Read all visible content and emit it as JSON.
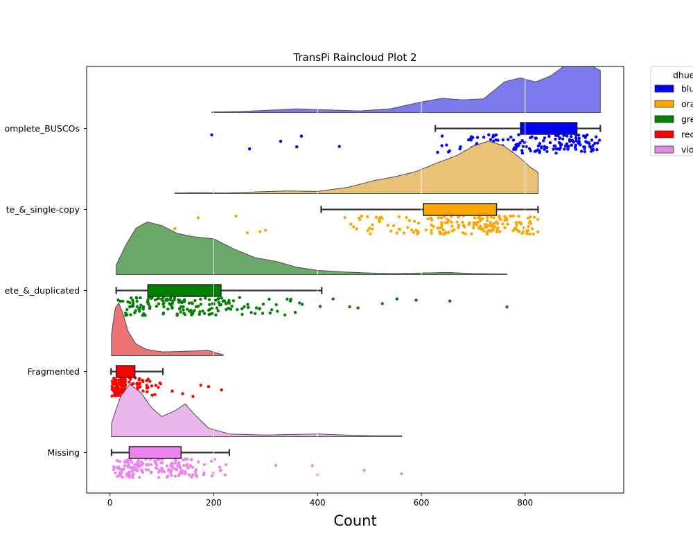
{
  "chart_data": {
    "type": "raincloud",
    "title": "TransPi Raincloud Plot 2",
    "xlabel": "Count",
    "ylabel": "",
    "xlim": [
      -45,
      990
    ],
    "xticks": [
      0,
      200,
      400,
      600,
      800
    ],
    "categories": [
      "Complete_BUSCOs",
      "Complete_&_single-copy",
      "Complete_&_duplicated",
      "Fragmented",
      "Missing"
    ],
    "category_labels_visible": [
      "omplete_BUSCOs",
      "te_&_single-copy",
      "ete_&_duplicated",
      "Fragmented",
      "Missing"
    ],
    "legend": {
      "title": "dhue",
      "entries": [
        "blue",
        "orange",
        "green",
        "red",
        "violet"
      ],
      "entries_visible": [
        "blu",
        "ora",
        "gre",
        "rec",
        "vio"
      ]
    },
    "series": [
      {
        "name": "blue",
        "color": "#0000ff",
        "cloud_color": "#7b7bee",
        "box": {
          "whisker_low": 627,
          "q1": 791,
          "median": 870,
          "q3": 900,
          "whisker_high": 945
        },
        "outliers": [
          196,
          269,
          329,
          360,
          369,
          442
        ],
        "density": [
          [
            197,
            0.01
          ],
          [
            250,
            0.02
          ],
          [
            300,
            0.04
          ],
          [
            360,
            0.07
          ],
          [
            420,
            0.05
          ],
          [
            480,
            0.03
          ],
          [
            540,
            0.07
          ],
          [
            600,
            0.2
          ],
          [
            640,
            0.27
          ],
          [
            680,
            0.24
          ],
          [
            720,
            0.26
          ],
          [
            760,
            0.58
          ],
          [
            790,
            0.66
          ],
          [
            820,
            0.58
          ],
          [
            850,
            0.7
          ],
          [
            880,
            0.92
          ],
          [
            905,
            1.0
          ],
          [
            925,
            0.9
          ],
          [
            945,
            0.8
          ]
        ]
      },
      {
        "name": "orange",
        "color": "#ffa500",
        "cloud_color": "#e9c277",
        "box": {
          "whisker_low": 407,
          "q1": 604,
          "median": 670,
          "q3": 745,
          "whisker_high": 825
        },
        "outliers": [
          125,
          170,
          243,
          265,
          289,
          300
        ],
        "density": [
          [
            125,
            0.01
          ],
          [
            170,
            0.02
          ],
          [
            220,
            0.01
          ],
          [
            280,
            0.03
          ],
          [
            340,
            0.05
          ],
          [
            400,
            0.04
          ],
          [
            460,
            0.12
          ],
          [
            510,
            0.25
          ],
          [
            550,
            0.32
          ],
          [
            590,
            0.42
          ],
          [
            630,
            0.58
          ],
          [
            670,
            0.73
          ],
          [
            700,
            0.9
          ],
          [
            730,
            1.0
          ],
          [
            760,
            0.9
          ],
          [
            790,
            0.68
          ],
          [
            810,
            0.5
          ],
          [
            825,
            0.4
          ]
        ]
      },
      {
        "name": "green",
        "color": "#008000",
        "cloud_color": "#6aa86a",
        "box": {
          "whisker_low": 12,
          "q1": 73,
          "median": 140,
          "q3": 214,
          "whisker_high": 408
        },
        "outliers": [
          430,
          462,
          478,
          525,
          553,
          590,
          655,
          765
        ],
        "density": [
          [
            12,
            0.18
          ],
          [
            30,
            0.55
          ],
          [
            50,
            0.88
          ],
          [
            72,
            1.0
          ],
          [
            100,
            0.93
          ],
          [
            130,
            0.78
          ],
          [
            160,
            0.72
          ],
          [
            200,
            0.68
          ],
          [
            240,
            0.48
          ],
          [
            280,
            0.32
          ],
          [
            320,
            0.25
          ],
          [
            360,
            0.14
          ],
          [
            400,
            0.08
          ],
          [
            450,
            0.05
          ],
          [
            500,
            0.03
          ],
          [
            550,
            0.02
          ],
          [
            600,
            0.03
          ],
          [
            650,
            0.04
          ],
          [
            700,
            0.02
          ],
          [
            765,
            0.01
          ]
        ]
      },
      {
        "name": "red",
        "color": "#ff0000",
        "cloud_color": "#ec7373",
        "box": {
          "whisker_low": 2,
          "q1": 12,
          "median": 24,
          "q3": 48,
          "whisker_high": 102
        },
        "outliers": [
          120,
          140,
          160,
          175,
          190,
          215
        ],
        "density": [
          [
            3,
            0.4
          ],
          [
            10,
            0.9
          ],
          [
            17,
            1.0
          ],
          [
            25,
            0.8
          ],
          [
            35,
            0.46
          ],
          [
            50,
            0.22
          ],
          [
            70,
            0.12
          ],
          [
            100,
            0.07
          ],
          [
            140,
            0.08
          ],
          [
            170,
            0.09
          ],
          [
            190,
            0.1
          ],
          [
            205,
            0.05
          ],
          [
            218,
            0.02
          ]
        ]
      },
      {
        "name": "violet",
        "color": "#ee82ee",
        "cloud_color": "#ebb6eb",
        "box": {
          "whisker_low": 3,
          "q1": 37,
          "median": 80,
          "q3": 137,
          "whisker_high": 230
        },
        "outliers": [
          320,
          390,
          400,
          490,
          562
        ],
        "density": [
          [
            3,
            0.25
          ],
          [
            20,
            0.75
          ],
          [
            38,
            1.0
          ],
          [
            60,
            0.83
          ],
          [
            80,
            0.55
          ],
          [
            100,
            0.38
          ],
          [
            125,
            0.49
          ],
          [
            145,
            0.62
          ],
          [
            160,
            0.45
          ],
          [
            190,
            0.16
          ],
          [
            230,
            0.05
          ],
          [
            300,
            0.03
          ],
          [
            400,
            0.05
          ],
          [
            450,
            0.03
          ],
          [
            500,
            0.02
          ],
          [
            562,
            0.02
          ]
        ]
      }
    ]
  }
}
